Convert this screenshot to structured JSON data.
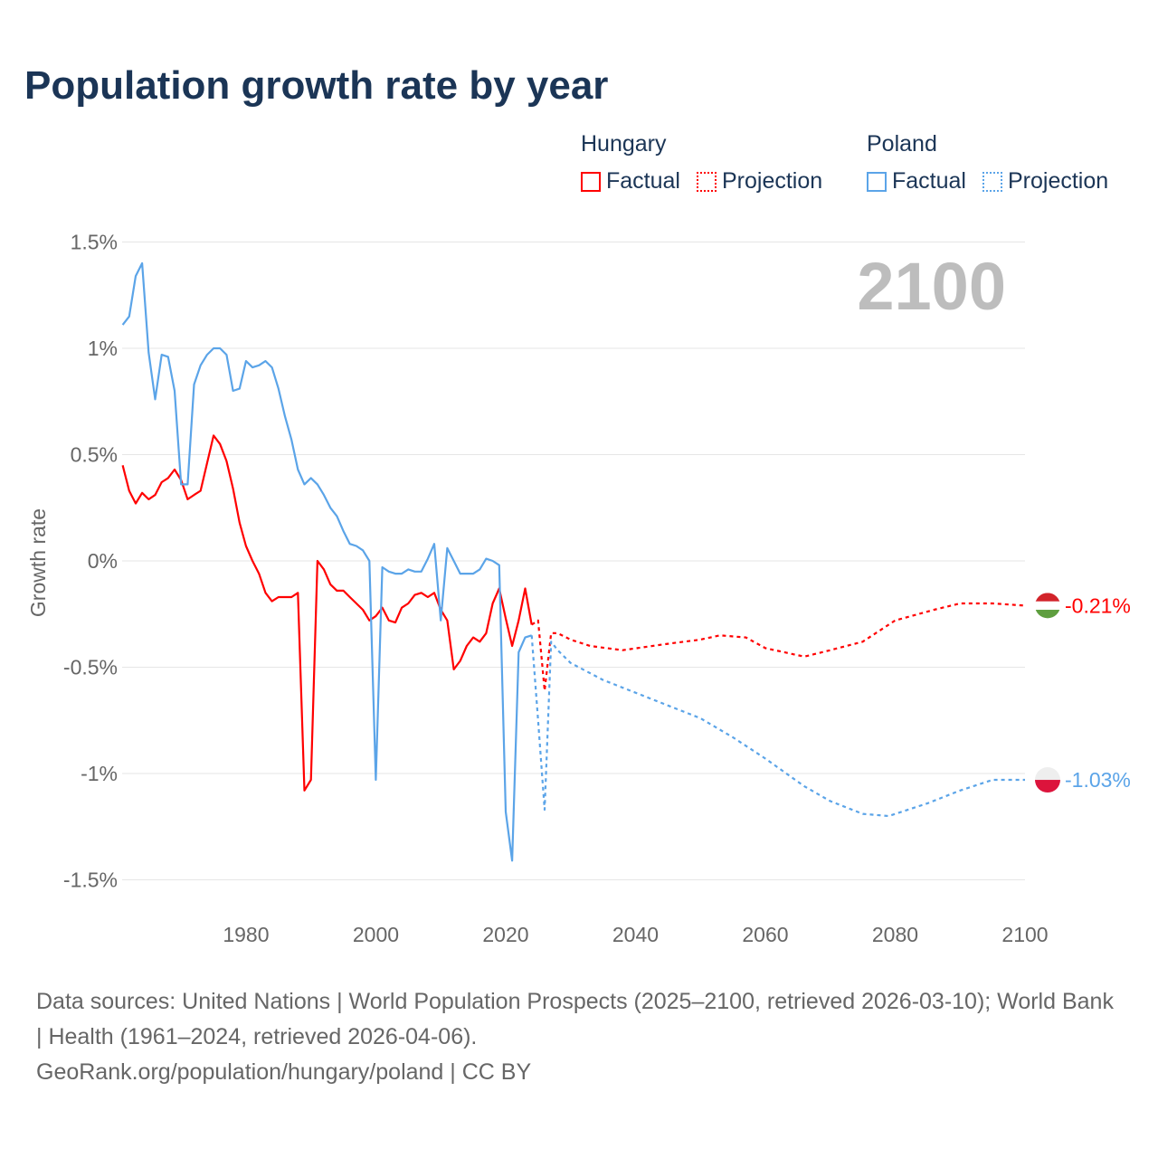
{
  "title": "Population growth rate by year",
  "legend": [
    {
      "group": "Hungary",
      "factual": "Factual",
      "projection": "Projection",
      "color": "#ff0000"
    },
    {
      "group": "Poland",
      "factual": "Factual",
      "projection": "Projection",
      "color": "#5ba4e8"
    }
  ],
  "footer": {
    "sources": "Data sources: United Nations | World Population Prospects (2025–2100, retrieved 2026-03-10); World Bank | Health (1961–2024, retrieved 2026-04-06).",
    "credit": "GeoRank.org/population/hungary/poland | CC BY"
  },
  "chart_data": {
    "type": "line",
    "title": "Population growth rate by year",
    "year_label": "2100",
    "xlabel": "",
    "ylabel": "Growth rate",
    "xlim": [
      1961,
      2100
    ],
    "ylim": [
      -1.5,
      1.5
    ],
    "x_ticks": [
      "1980",
      "2000",
      "2020",
      "2040",
      "2060",
      "2080",
      "2100"
    ],
    "x_tick_values": [
      1980,
      2000,
      2020,
      2040,
      2060,
      2080,
      2100
    ],
    "y_ticks": [
      "1.5%",
      "1%",
      "0.5%",
      "0%",
      "-0.5%",
      "-1%",
      "-1.5%"
    ],
    "y_tick_values": [
      1.5,
      1,
      0.5,
      0,
      -0.5,
      -1,
      -1.5
    ],
    "grid": true,
    "legend_position": "top-right",
    "series": [
      {
        "name": "Hungary Factual",
        "color": "#ff0000",
        "dashed": false,
        "start_year": 1961,
        "values": [
          0.45,
          0.33,
          0.27,
          0.32,
          0.29,
          0.31,
          0.37,
          0.39,
          0.43,
          0.38,
          0.29,
          0.31,
          0.33,
          0.46,
          0.59,
          0.55,
          0.47,
          0.34,
          0.18,
          0.07,
          0.0,
          -0.06,
          -0.15,
          -0.19,
          -0.17,
          -0.17,
          -0.17,
          -0.15,
          -1.08,
          -1.03,
          0.0,
          -0.04,
          -0.11,
          -0.14,
          -0.14,
          -0.17,
          -0.2,
          -0.23,
          -0.28,
          -0.26,
          -0.22,
          -0.28,
          -0.29,
          -0.22,
          -0.2,
          -0.16,
          -0.15,
          -0.17,
          -0.15,
          -0.23,
          -0.28,
          -0.51,
          -0.47,
          -0.4,
          -0.36,
          -0.38,
          -0.34,
          -0.2,
          -0.13,
          -0.27,
          -0.4,
          -0.28,
          -0.13,
          -0.3
        ]
      },
      {
        "name": "Hungary Projection",
        "color": "#ff0000",
        "dashed": true,
        "x": [
          2024,
          2025,
          2026,
          2027,
          2028,
          2030,
          2033,
          2038,
          2045,
          2050,
          2053,
          2057,
          2060,
          2066,
          2070,
          2075,
          2080,
          2086,
          2090,
          2095,
          2100
        ],
        "values": [
          -0.3,
          -0.28,
          -0.61,
          -0.34,
          -0.34,
          -0.37,
          -0.4,
          -0.42,
          -0.39,
          -0.37,
          -0.35,
          -0.36,
          -0.41,
          -0.45,
          -0.42,
          -0.38,
          -0.28,
          -0.23,
          -0.2,
          -0.2,
          -0.21
        ]
      },
      {
        "name": "Poland Factual",
        "color": "#5ba4e8",
        "dashed": false,
        "start_year": 1961,
        "values": [
          1.11,
          1.15,
          1.34,
          1.4,
          0.98,
          0.76,
          0.97,
          0.96,
          0.8,
          0.36,
          0.36,
          0.83,
          0.92,
          0.97,
          1.0,
          1.0,
          0.97,
          0.8,
          0.81,
          0.94,
          0.91,
          0.92,
          0.94,
          0.91,
          0.81,
          0.68,
          0.57,
          0.43,
          0.36,
          0.39,
          0.36,
          0.31,
          0.25,
          0.21,
          0.14,
          0.08,
          0.07,
          0.05,
          0.0,
          -1.03,
          -0.03,
          -0.05,
          -0.06,
          -0.06,
          -0.04,
          -0.05,
          -0.05,
          0.01,
          0.08,
          -0.28,
          0.06,
          0.0,
          -0.06,
          -0.06,
          -0.06,
          -0.04,
          0.01,
          0.0,
          -0.02,
          -1.18,
          -1.41,
          -0.43,
          -0.36,
          -0.35
        ]
      },
      {
        "name": "Poland Projection",
        "color": "#5ba4e8",
        "dashed": true,
        "x": [
          2024,
          2025,
          2026,
          2027,
          2028,
          2030,
          2035,
          2040,
          2045,
          2050,
          2055,
          2060,
          2066,
          2070,
          2075,
          2079,
          2085,
          2090,
          2095,
          2100
        ],
        "values": [
          -0.35,
          -0.75,
          -1.17,
          -0.38,
          -0.42,
          -0.48,
          -0.56,
          -0.62,
          -0.68,
          -0.74,
          -0.83,
          -0.93,
          -1.06,
          -1.13,
          -1.19,
          -1.2,
          -1.14,
          -1.08,
          -1.03,
          -1.03
        ]
      }
    ],
    "end_labels": [
      {
        "country": "Hungary",
        "label": "-0.21%",
        "value": -0.21,
        "color": "#ff0000"
      },
      {
        "country": "Poland",
        "label": "-1.03%",
        "value": -1.03,
        "color": "#5ba4e8"
      }
    ]
  }
}
